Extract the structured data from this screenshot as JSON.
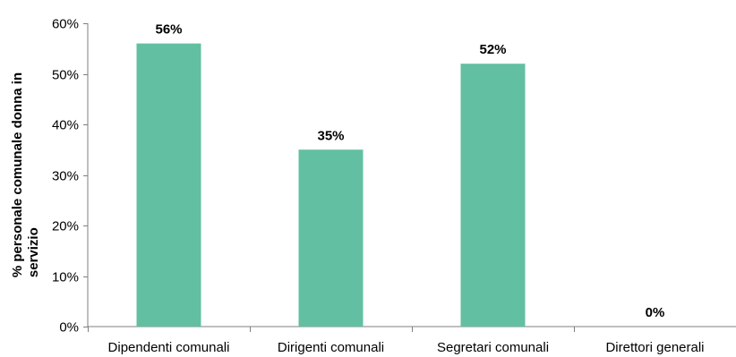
{
  "chart_data": {
    "type": "bar",
    "categories": [
      "Dipendenti comunali",
      "Dirigenti comunali",
      "Segretari comunali",
      "Direttori generali"
    ],
    "values": [
      56,
      35,
      52,
      0
    ],
    "data_labels": [
      "56%",
      "35%",
      "52%",
      "0%"
    ],
    "title": "",
    "xlabel": "",
    "ylabel": "% personale comunale donna in servizio",
    "ylabel_lines": [
      "% personale comunale donna in",
      "servizio"
    ],
    "ylim": [
      0,
      60
    ],
    "yticks": [
      0,
      10,
      20,
      30,
      40,
      50,
      60
    ],
    "ytick_labels": [
      "0%",
      "10%",
      "20%",
      "30%",
      "40%",
      "50%",
      "60%"
    ],
    "grid": false,
    "legend": "none",
    "bar_color": "#63bfa2",
    "axis_color": "#7f7f7f"
  }
}
